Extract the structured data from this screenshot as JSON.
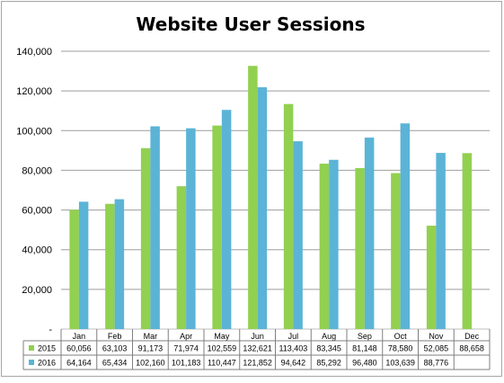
{
  "chart_data": {
    "type": "bar",
    "title": "Website User Sessions",
    "categories": [
      "Jan",
      "Feb",
      "Mar",
      "Apr",
      "May",
      "Jun",
      "Jul",
      "Aug",
      "Sep",
      "Oct",
      "Nov",
      "Dec"
    ],
    "series": [
      {
        "name": "2015",
        "color": "#92d050",
        "values": [
          60056,
          63103,
          91173,
          71974,
          102559,
          132621,
          113403,
          83345,
          81148,
          78580,
          52085,
          88658
        ],
        "labels": [
          "60,056",
          "63,103",
          "91,173",
          "71,974",
          "102,559",
          "132,621",
          "113,403",
          "83,345",
          "81,148",
          "78,580",
          "52,085",
          "88,658"
        ]
      },
      {
        "name": "2016",
        "color": "#5bb4d6",
        "values": [
          64164,
          65434,
          102160,
          101183,
          110447,
          121852,
          94642,
          85292,
          96480,
          103639,
          88776,
          null
        ],
        "labels": [
          "64,164",
          "65,434",
          "102,160",
          "101,183",
          "110,447",
          "121,852",
          "94,642",
          "85,292",
          "96,480",
          "103,639",
          "88,776",
          ""
        ]
      }
    ],
    "ylim": [
      0,
      140000
    ],
    "yticks": [
      0,
      20000,
      40000,
      60000,
      80000,
      100000,
      120000,
      140000
    ],
    "ytick_labels": [
      "-",
      "20,000",
      "40,000",
      "60,000",
      "80,000",
      "100,000",
      "120,000",
      "140,000"
    ],
    "grid": true,
    "legend": "data-table"
  }
}
